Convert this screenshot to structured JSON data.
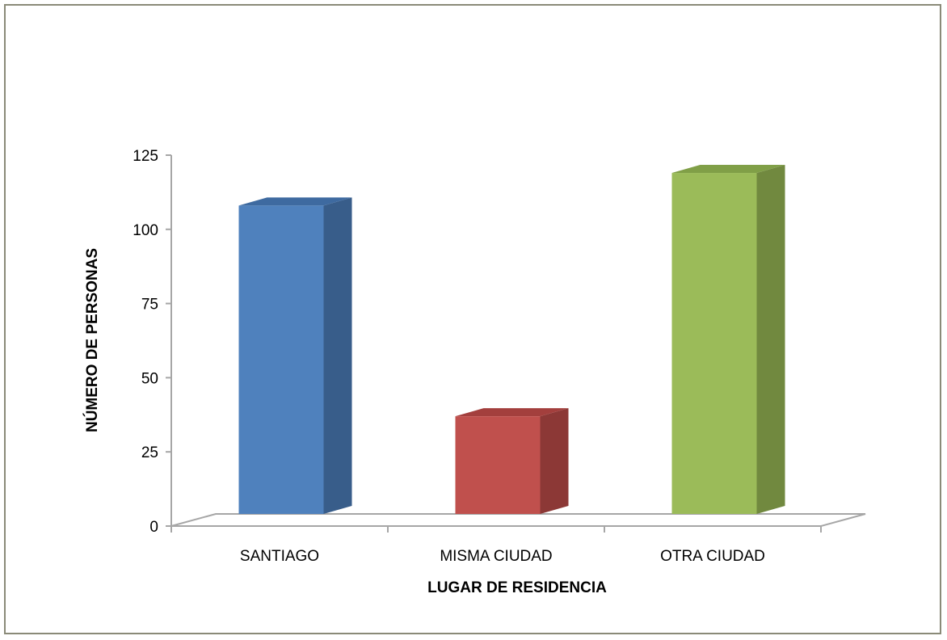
{
  "chart_data": {
    "type": "bar",
    "title": "",
    "xlabel": "LUGAR DE RESIDENCIA",
    "ylabel": "NÚMERO DE PERSONAS",
    "categories": [
      "SANTIAGO",
      "MISMA CIUDAD",
      "OTRA CIUDAD"
    ],
    "values": [
      108,
      37,
      119
    ],
    "ylim": [
      0,
      125
    ],
    "yticks": [
      0,
      25,
      50,
      75,
      100,
      125
    ],
    "yticklabels": [
      "0",
      "25",
      "50",
      "75",
      "100",
      "125"
    ],
    "grid": false,
    "legend": "none",
    "style": "3d-column",
    "colors": {
      "bars": [
        "#4f81bd",
        "#c0504d",
        "#9bbb59"
      ],
      "bar_sides": [
        "#385d8a",
        "#8c3836",
        "#71893f"
      ],
      "bar_tops": [
        "#3e6aa0",
        "#a33f3d",
        "#809f47"
      ],
      "axis": "#a6a6a6",
      "frame": "#8a8a78"
    }
  }
}
